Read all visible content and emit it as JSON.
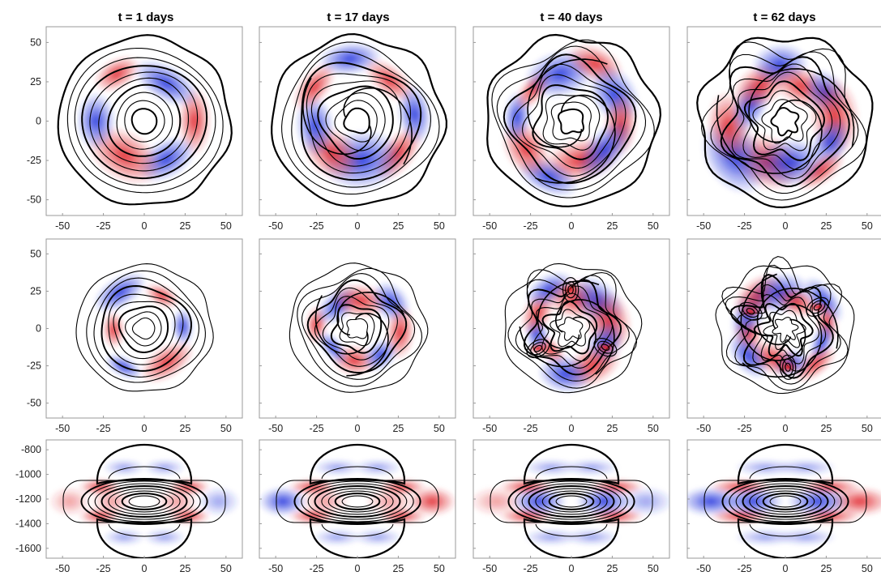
{
  "chart_data": {
    "type": "heatmap",
    "layout": {
      "rows": 3,
      "cols": 4
    },
    "column_titles": [
      "t = 1 days",
      "t = 17 days",
      "t = 40 days",
      "t = 62 days"
    ],
    "x_ticks": [
      -50,
      -25,
      0,
      25,
      50
    ],
    "row_y_ticks": [
      [
        -50,
        -25,
        0,
        25,
        50
      ],
      [
        -50,
        -25,
        0,
        25,
        50
      ],
      [
        -1600,
        -1400,
        -1200,
        -1000,
        -800
      ]
    ],
    "xlim": [
      -60,
      60
    ],
    "row_ylim": [
      [
        -60,
        60
      ],
      [
        -60,
        60
      ],
      [
        -1680,
        -720
      ]
    ],
    "colors": {
      "positive": "#e0242a",
      "negative": "#2233dd",
      "contour": "#000000",
      "axis": "#9a9a9a"
    },
    "grid": false,
    "legend": "none"
  }
}
